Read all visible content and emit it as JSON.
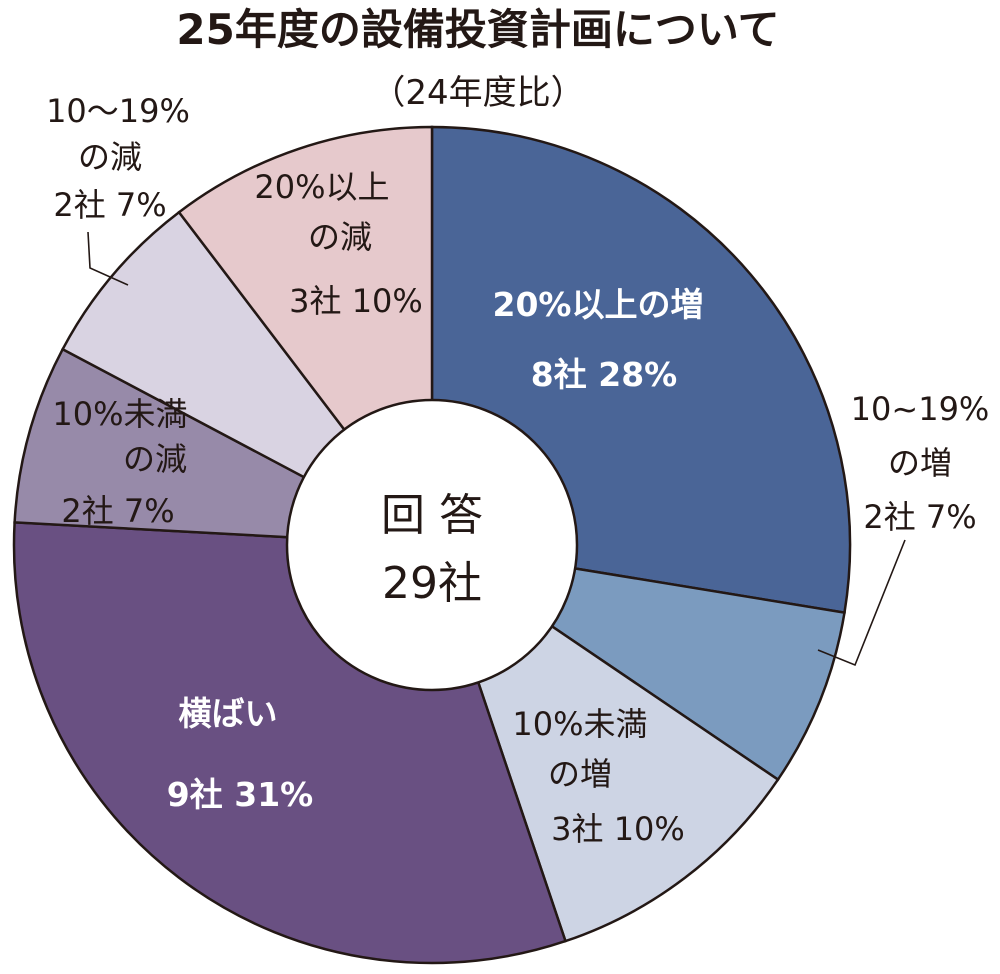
{
  "chart_data": {
    "type": "pie",
    "style": "donut",
    "title": "25年度の設備投資計画について",
    "subtitle": "（24年度比）",
    "center_text": [
      "回 答",
      "29社"
    ],
    "total": 29,
    "slices": [
      {
        "label": "20%以上の増",
        "companies_text": "8社 28%",
        "count": 8,
        "percent": 28,
        "color": "#4a6597"
      },
      {
        "label": "10~19%の増",
        "companies_text": "2社 7%",
        "count": 2,
        "percent": 7,
        "color": "#7b9bbf"
      },
      {
        "label": "10%未満の増",
        "companies_text": "3社 10%",
        "count": 3,
        "percent": 10,
        "color": "#cdd4e4"
      },
      {
        "label": "横ばい",
        "companies_text": "9社 31%",
        "count": 9,
        "percent": 31,
        "color": "#695082"
      },
      {
        "label": "10%未満の減",
        "companies_text": "2社  7%",
        "count": 2,
        "percent": 7,
        "color": "#978aa9"
      },
      {
        "label": "10〜19%の減",
        "companies_text": "2社 7%",
        "count": 2,
        "percent": 7,
        "color": "#d9d3e2"
      },
      {
        "label": "20%以上の減",
        "companies_text": "3社 10%",
        "count": 3,
        "percent": 10,
        "color": "#e6c9cc"
      }
    ],
    "label_lines": {
      "inc20": [
        "20%以上の増",
        "8社 28%"
      ],
      "inc10": [
        "10~19%",
        "の増",
        "2社 7%"
      ],
      "incLt10": [
        "10%未満",
        "の増",
        "3社 10%"
      ],
      "flat": [
        "横ばい",
        "9社 31%"
      ],
      "decLt10": [
        "10%未満",
        "の減",
        "2社  7%"
      ],
      "dec10": [
        "10〜19%",
        "の減",
        "2社 7%"
      ],
      "dec20": [
        "20%以上",
        "の減",
        "3社 10%"
      ]
    }
  }
}
